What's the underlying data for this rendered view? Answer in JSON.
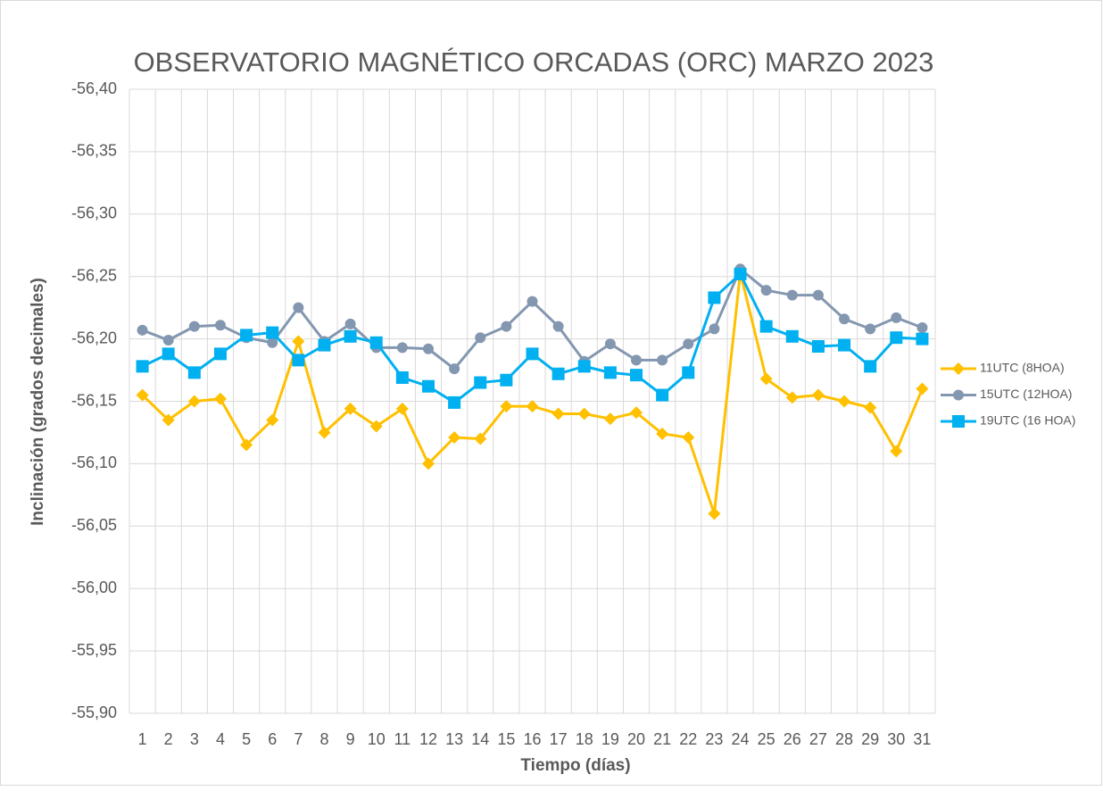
{
  "chart_data": {
    "type": "line",
    "title": "OBSERVATORIO MAGNÉTICO ORCADAS (ORC) MARZO 2023",
    "x_label": "Tiempo (días)",
    "y_label": "Inclinación (grados decimales)",
    "categories": [
      "1",
      "2",
      "3",
      "4",
      "5",
      "6",
      "7",
      "8",
      "9",
      "10",
      "11",
      "12",
      "13",
      "14",
      "15",
      "16",
      "17",
      "18",
      "19",
      "20",
      "21",
      "22",
      "23",
      "24",
      "25",
      "26",
      "27",
      "28",
      "29",
      "30",
      "31"
    ],
    "ylim": [
      -55.9,
      -56.4
    ],
    "yticks": [
      {
        "value": -56.4,
        "label": "-56,40"
      },
      {
        "value": -56.35,
        "label": "-56,35"
      },
      {
        "value": -56.3,
        "label": "-56,30"
      },
      {
        "value": -56.25,
        "label": "-56,25"
      },
      {
        "value": -56.2,
        "label": "-56,20"
      },
      {
        "value": -56.15,
        "label": "-56,15"
      },
      {
        "value": -56.1,
        "label": "-56,10"
      },
      {
        "value": -56.05,
        "label": "-56,05"
      },
      {
        "value": -56.0,
        "label": "-56,00"
      },
      {
        "value": -55.95,
        "label": "-55,95"
      },
      {
        "value": -55.9,
        "label": "-55,90"
      }
    ],
    "grid": true,
    "legend": "right",
    "series": [
      {
        "name": "11UTC (8HOA)",
        "color": "#FFC000",
        "marker": "diamond",
        "values": [
          -56.155,
          -56.135,
          -56.15,
          -56.152,
          -56.115,
          -56.135,
          -56.198,
          -56.125,
          -56.144,
          -56.13,
          -56.144,
          -56.1,
          -56.121,
          -56.12,
          -56.146,
          -56.146,
          -56.14,
          -56.14,
          -56.136,
          -56.141,
          -56.124,
          -56.121,
          -56.06,
          -56.253,
          -56.168,
          -56.153,
          -56.155,
          -56.15,
          -56.145,
          -56.11,
          -56.16
        ]
      },
      {
        "name": "15UTC (12HOA)",
        "color": "#8497B0",
        "marker": "circle",
        "values": [
          -56.207,
          -56.199,
          -56.21,
          -56.211,
          -56.201,
          -56.197,
          -56.225,
          -56.198,
          -56.212,
          -56.193,
          -56.193,
          -56.192,
          -56.176,
          -56.201,
          -56.21,
          -56.23,
          -56.21,
          -56.182,
          -56.196,
          -56.183,
          -56.183,
          -56.196,
          -56.208,
          -56.256,
          -56.239,
          -56.235,
          -56.235,
          -56.216,
          -56.208,
          -56.217,
          -56.209
        ]
      },
      {
        "name": "19UTC (16 HOA)",
        "color": "#00B0F0",
        "marker": "square",
        "values": [
          -56.178,
          -56.188,
          -56.173,
          -56.188,
          -56.203,
          -56.205,
          -56.183,
          -56.195,
          -56.202,
          -56.197,
          -56.169,
          -56.162,
          -56.149,
          -56.165,
          -56.167,
          -56.188,
          -56.172,
          -56.178,
          -56.173,
          -56.171,
          -56.155,
          -56.173,
          -56.233,
          -56.252,
          -56.21,
          -56.202,
          -56.194,
          -56.195,
          -56.178,
          -56.201,
          -56.2
        ]
      }
    ]
  }
}
